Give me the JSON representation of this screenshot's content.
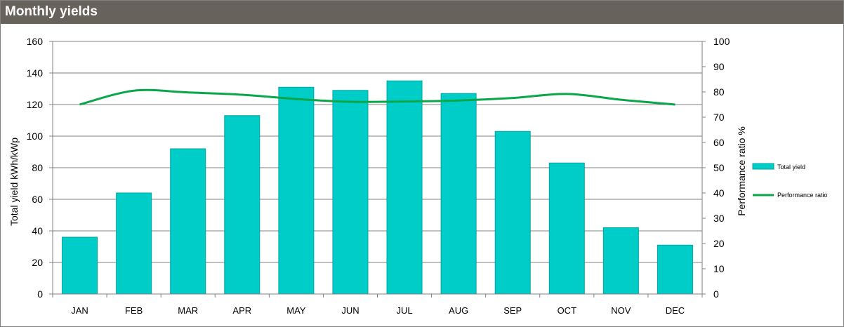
{
  "header": {
    "title": "Monthly yields"
  },
  "chart_data": {
    "type": "bar",
    "categories": [
      "JAN",
      "FEB",
      "MAR",
      "APR",
      "MAY",
      "JUN",
      "JUL",
      "AUG",
      "SEP",
      "OCT",
      "NOV",
      "DEC"
    ],
    "series": [
      {
        "name": "Total yield",
        "kind": "bar",
        "axis": "left",
        "values": [
          36,
          64,
          92,
          113,
          131,
          129,
          135,
          127,
          103,
          83,
          42,
          31
        ]
      },
      {
        "name": "Performance ratio",
        "kind": "line",
        "axis": "right",
        "values": [
          75,
          80.5,
          79.8,
          78.9,
          77.2,
          76.1,
          76.2,
          76.6,
          77.6,
          79.2,
          76.9,
          75
        ]
      }
    ],
    "ylabel": "Total yield kWh/kWp",
    "y2label": "Performance ratio %",
    "ylim": [
      0,
      160
    ],
    "y2lim": [
      0,
      100
    ],
    "yticks": [
      0,
      20,
      40,
      60,
      80,
      100,
      120,
      140,
      160
    ],
    "y2ticks": [
      0,
      10,
      20,
      30,
      40,
      50,
      60,
      70,
      80,
      90,
      100
    ],
    "grid": true,
    "legend": "right",
    "colors": {
      "bar": "#00cdc7",
      "bar_edge": "#00a7a3",
      "line": "#0aa64a",
      "grid": "#808080"
    }
  }
}
